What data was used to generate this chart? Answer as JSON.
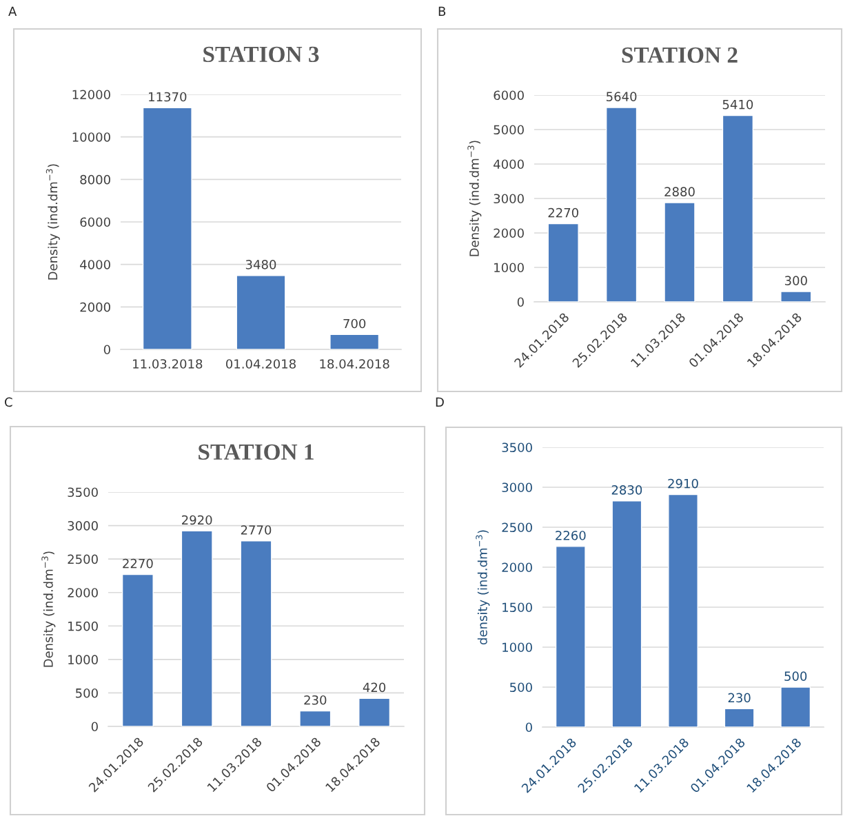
{
  "chart_data": [
    {
      "type": "bar",
      "title": "STATION 3",
      "ylabel": "Density (ind.dm$^{−3}$)",
      "annotations": [
        "A"
      ],
      "categories": [
        "11.03.2018",
        "01.04.2018",
        "18.04.2018"
      ],
      "values": [
        11370,
        3480,
        700
      ],
      "color": "#4a7cbf",
      "ylim": [
        0,
        12000
      ],
      "yticks": [
        0,
        2000,
        4000,
        6000,
        8000,
        10000,
        12000
      ],
      "grid": "y",
      "data_labels": true
    },
    {
      "type": "bar",
      "title": "STATION 2",
      "ylabel": "Density (ind.dm$^{−3}$)",
      "annotations": [
        "B"
      ],
      "categories": [
        "24.01.2018",
        "25.02.2018",
        "11.03.2018",
        "01.04.2018",
        "18.04.2018"
      ],
      "values": [
        2270,
        5640,
        2880,
        5410,
        300
      ],
      "color": "#4a7cbf",
      "ylim": [
        0,
        6000
      ],
      "yticks": [
        0,
        1000,
        2000,
        3000,
        4000,
        5000,
        6000
      ],
      "grid": "y",
      "data_labels": true
    },
    {
      "type": "bar",
      "title": "STATION 1",
      "ylabel": "Density (ind.dm$^{−3}$)",
      "annotations": [
        "C"
      ],
      "categories": [
        "24.01.2018",
        "25.02.2018",
        "11.03.2018",
        "01.04.2018",
        "18.04.2018"
      ],
      "values": [
        2270,
        2920,
        2770,
        230,
        420
      ],
      "color": "#4a7cbf",
      "ylim": [
        0,
        3500
      ],
      "yticks": [
        0,
        500,
        1000,
        1500,
        2000,
        2500,
        3000,
        3500
      ],
      "grid": "y",
      "data_labels": true
    },
    {
      "type": "bar",
      "ylabel": "density (ind.dm$^{−3}$)",
      "annotations": [
        "D"
      ],
      "categories": [
        "24.01.2018",
        "25.02.2018",
        "11.03.2018",
        "01.04.2018",
        "18.04.2018"
      ],
      "values": [
        2260,
        2830,
        2910,
        230,
        500
      ],
      "color": "#4a7cbf",
      "ylim": [
        0,
        3500
      ],
      "yticks": [
        0,
        500,
        1000,
        1500,
        2000,
        2500,
        3000,
        3500
      ],
      "grid": "y",
      "data_labels": true
    }
  ]
}
